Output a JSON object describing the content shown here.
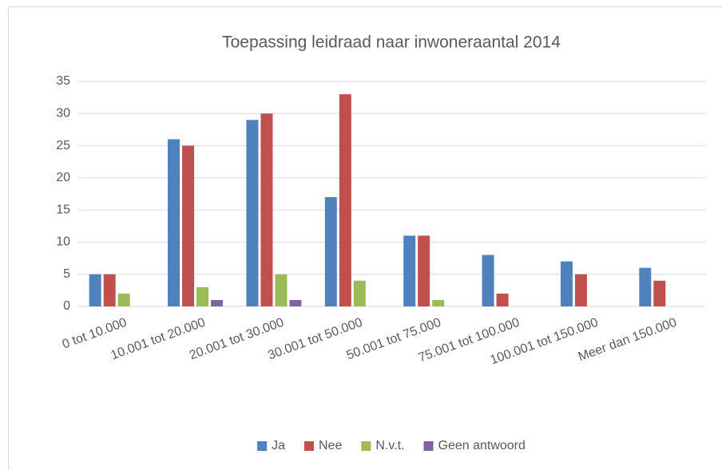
{
  "chart_data": {
    "type": "bar",
    "title": "Toepassing leidraad naar inwoneraantal 2014",
    "categories": [
      "0 tot 10.000",
      "10.001 tot 20.000",
      "20.001 tot 30.000",
      "30.001 tot 50.000",
      "50.001 tot 75.000",
      "75.001 tot 100.000",
      "100.001 tot 150.000",
      "Meer dan 150.000"
    ],
    "series": [
      {
        "name": "Ja",
        "color": "#4f81bd",
        "values": [
          5,
          26,
          29,
          17,
          11,
          8,
          7,
          6
        ]
      },
      {
        "name": "Nee",
        "color": "#c0504d",
        "values": [
          5,
          25,
          30,
          33,
          11,
          2,
          5,
          4
        ]
      },
      {
        "name": "N.v.t.",
        "color": "#9bbb59",
        "values": [
          2,
          3,
          5,
          4,
          1,
          0,
          0,
          0
        ]
      },
      {
        "name": "Geen antwoord",
        "color": "#8064a2",
        "values": [
          0,
          1,
          1,
          0,
          0,
          0,
          0,
          0
        ]
      }
    ],
    "ylim": [
      0,
      35
    ],
    "yticks": [
      0,
      5,
      10,
      15,
      20,
      25,
      30,
      35
    ],
    "grid": true,
    "legend": "bottom"
  }
}
